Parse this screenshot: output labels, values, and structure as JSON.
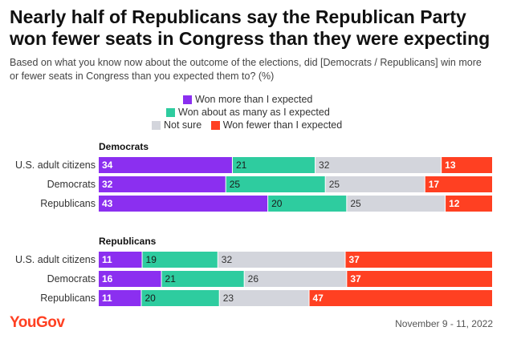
{
  "title": "Nearly half of Republicans say the Republican Party won fewer seats in Congress than they were expecting",
  "subtitle": "Based on what you know now about the outcome of the elections, did [Democrats / Republicans] win more or fewer seats in Congress than you expected them to? (%)",
  "brand": "YouGov",
  "date": "November 9 - 11, 2022",
  "colors": {
    "more": "#8b2ff0",
    "same": "#2ecc9f",
    "not_sure": "#d3d5dc",
    "fewer": "#ff4022"
  },
  "chart_data": {
    "type": "bar",
    "orientation": "horizontal-stacked",
    "legend": [
      {
        "key": "more",
        "label": "Won more than I expected"
      },
      {
        "key": "same",
        "label": "Won about as many as I expected"
      },
      {
        "key": "not_sure",
        "label": "Not sure"
      },
      {
        "key": "fewer",
        "label": "Won fewer than I expected"
      }
    ],
    "groups": [
      {
        "name": "Democrats",
        "rows": [
          {
            "label": "U.S. adult citizens",
            "values": [
              34,
              21,
              32,
              13
            ]
          },
          {
            "label": "Democrats",
            "values": [
              32,
              25,
              25,
              17
            ]
          },
          {
            "label": "Republicans",
            "values": [
              43,
              20,
              25,
              12
            ]
          }
        ]
      },
      {
        "name": "Republicans",
        "rows": [
          {
            "label": "U.S. adult citizens",
            "values": [
              11,
              19,
              32,
              37
            ]
          },
          {
            "label": "Democrats",
            "values": [
              16,
              21,
              26,
              37
            ]
          },
          {
            "label": "Republicans",
            "values": [
              11,
              20,
              23,
              47
            ]
          }
        ]
      }
    ]
  }
}
